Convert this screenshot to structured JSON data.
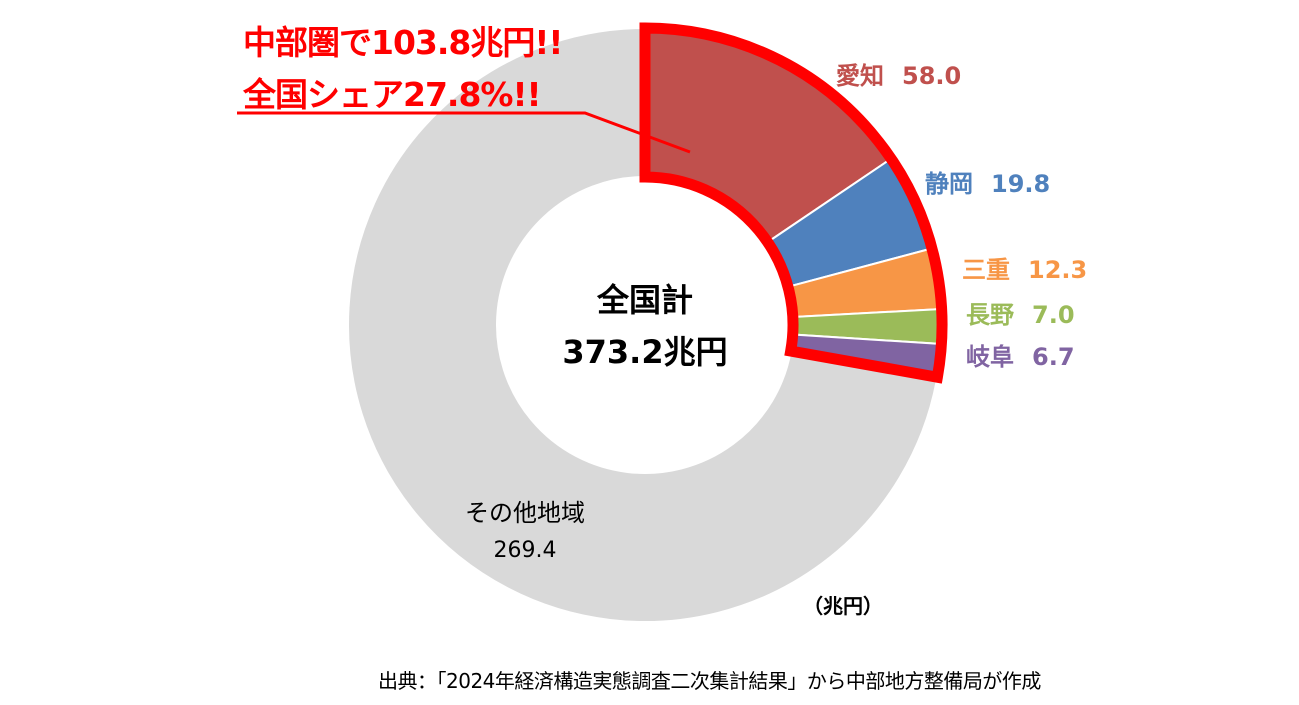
{
  "annotation": {
    "line1": "中部圏で103.8兆円!!",
    "line2": "全国シェア27.8%!!",
    "color": "#FF0000"
  },
  "chart_data": {
    "type": "pie",
    "donut": true,
    "center_label": {
      "line1": "全国計",
      "line2": "373.2兆円"
    },
    "unit_label": "（兆円）",
    "slices": [
      {
        "name": "愛知",
        "value": 58.0,
        "label": "58.0",
        "color": "#C0504D",
        "highlighted": true
      },
      {
        "name": "静岡",
        "value": 19.8,
        "label": "19.8",
        "color": "#4F81BD",
        "highlighted": true
      },
      {
        "name": "三重",
        "value": 12.3,
        "label": "12.3",
        "color": "#F79646",
        "highlighted": true
      },
      {
        "name": "長野",
        "value": 7.0,
        "label": "7.0",
        "color": "#9BBB59",
        "highlighted": true
      },
      {
        "name": "岐阜",
        "value": 6.7,
        "label": "6.7",
        "color": "#8064A2",
        "highlighted": true
      },
      {
        "name": "その他地域",
        "value": 269.4,
        "label": "269.4",
        "color": "#D9D9D9",
        "highlighted": false
      }
    ],
    "highlight_color": "#FF0000"
  },
  "source": "出典：「2024年経済構造実態調査二次集計結果」から中部地方整備局が作成"
}
